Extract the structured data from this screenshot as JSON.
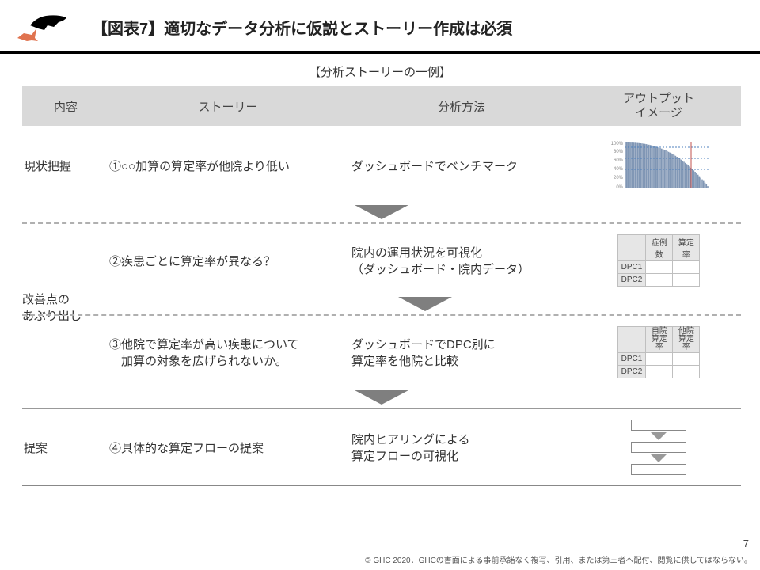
{
  "header": {
    "title": "【図表7】適切なデータ分析に仮説とストーリー作成は必須"
  },
  "subtitle": "【分析ストーリーの一例】",
  "columns": {
    "a": "内容",
    "b": "ストーリー",
    "c": "分析方法",
    "d": "アウトプット\nイメージ"
  },
  "rows": {
    "r1": {
      "a": "現状把握",
      "b": "①○○加算の算定率が他院より低い",
      "c": "ダッシュボードでベンチマーク"
    },
    "r2": {
      "b": "②疾患ごとに算定率が異なる？",
      "c": "院内の運用状況を可視化\n（ダッシュボード・院内データ）"
    },
    "r23_a": "改善点の\nあぶり出し",
    "r3": {
      "b": "③他院で算定率が高い疾患について\n　加算の対象を広げられないか。",
      "c": "ダッシュボードでDPC別に\n算定率を他院と比較"
    },
    "r4": {
      "a": "提案",
      "b": "④具体的な算定フローの提案",
      "c": "院内ヒアリングによる\n算定フローの可視化"
    }
  },
  "mini_chart": {
    "ylim": [
      0,
      100
    ],
    "tick_labels": [
      "0%",
      "20%",
      "40%",
      "60%",
      "80%",
      "100%"
    ],
    "bar_color": "#8197b5",
    "hline_color": "#4f81bd",
    "marker_color": "#c0504d",
    "n_bars": 60
  },
  "mini_table1": {
    "cols": [
      "症例数",
      "算定率"
    ],
    "rows": [
      "DPC1",
      "DPC2"
    ]
  },
  "mini_table2": {
    "cols": [
      "自院\n算定率",
      "他院\n算定率"
    ],
    "rows": [
      "DPC1",
      "DPC2"
    ]
  },
  "footer": {
    "page": "7",
    "copyright": "© GHC 2020．GHCの書面による事前承諾なく複写、引用、または第三者へ配付、閲覧に供してはならない。"
  },
  "colors": {
    "header_bg": "#d9d9d9",
    "arrow": "#7f7f7f",
    "rule": "#000000"
  }
}
